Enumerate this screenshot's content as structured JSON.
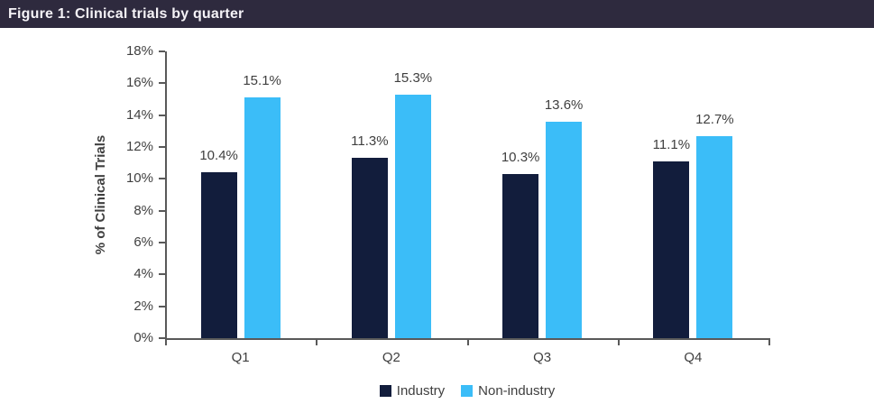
{
  "figure": {
    "title": "Figure 1: Clinical trials by quarter"
  },
  "chart_data": {
    "type": "bar",
    "title": "Figure 1: Clinical trials by quarter",
    "categories": [
      "Q1",
      "Q2",
      "Q3",
      "Q4"
    ],
    "series": [
      {
        "name": "Industry",
        "color": "#121d3c",
        "values": [
          10.4,
          11.3,
          10.3,
          11.1
        ]
      },
      {
        "name": "Non-industry",
        "color": "#3bbdf8",
        "values": [
          15.1,
          15.3,
          13.6,
          12.7
        ]
      }
    ],
    "xlabel": "",
    "ylabel": "% of Clinical Trials",
    "ylim": [
      0,
      18
    ],
    "ytick_step": 2,
    "ytick_format": "percent",
    "data_labels": true,
    "data_label_format": "percent_1dp",
    "grid": false,
    "legend_position": "bottom"
  },
  "colors": {
    "header_bg": "#2e2a3e",
    "header_text": "#f5f3f7",
    "axis": "#595959",
    "label_text": "#404040",
    "background": "#ffffff"
  }
}
